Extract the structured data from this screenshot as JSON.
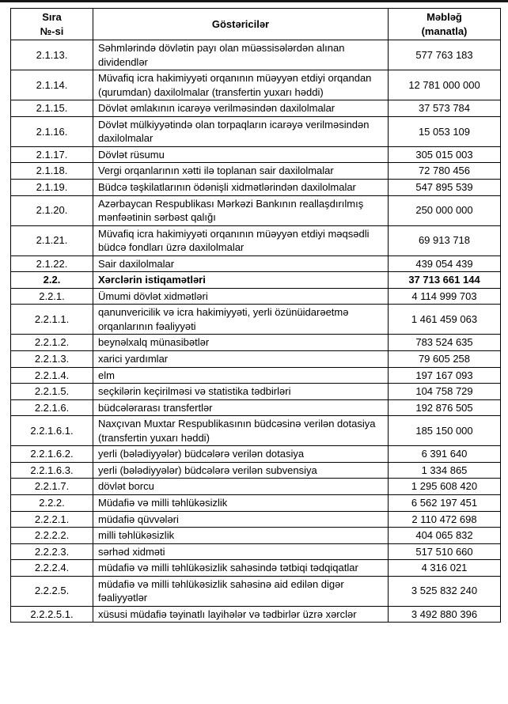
{
  "table": {
    "headers": {
      "row_number": "Sıra\n№-si",
      "indicators": "Göstəricilər",
      "amount": "Məbləğ\n(manatla)"
    },
    "rows": [
      {
        "no": "2.1.13.",
        "label": "Səhmlərində dövlətin payı olan müəssisələrdən alınan dividendlər",
        "amount": "577 763 183"
      },
      {
        "no": "2.1.14.",
        "label": "Müvafiq icra hakimiyyəti orqanının müəyyən etdiyi orqandan (qurumdan) daxilolmalar (transfertin yuxarı həddi)",
        "amount": "12 781 000 000"
      },
      {
        "no": "2.1.15.",
        "label": "Dövlət əmlakının icarəyə verilməsindən daxilolmalar",
        "amount": "37 573 784"
      },
      {
        "no": "2.1.16.",
        "label": "Dövlət mülkiyyətində olan torpaqların icarəyə verilməsindən daxilolmalar",
        "amount": "15 053 109"
      },
      {
        "no": "2.1.17.",
        "label": "Dövlət rüsumu",
        "amount": "305 015 003"
      },
      {
        "no": "2.1.18.",
        "label": "Vergi orqanlarının xətti ilə toplanan sair daxilolmalar",
        "amount": "72 780 456"
      },
      {
        "no": "2.1.19.",
        "label": "Büdcə təşkilatlarının ödənişli xidmətlərindən daxilolmalar",
        "amount": "547 895 539"
      },
      {
        "no": "2.1.20.",
        "label": "Azərbaycan Respublikası Mərkəzi Bankının reallaşdırılmış mənfəətinin sərbəst qalığı",
        "amount": "250 000 000"
      },
      {
        "no": "2.1.21.",
        "label": "Müvafiq icra hakimiyyəti orqanının müəyyən etdiyi məqsədli büdcə fondları üzrə daxilolmalar",
        "amount": "69 913 718"
      },
      {
        "no": "2.1.22.",
        "label": "Sair daxilolmalar",
        "amount": "439 054 439"
      },
      {
        "no": "2.2.",
        "label": "Xərclərin istiqamətləri",
        "amount": "37 713 661 144",
        "bold": true
      },
      {
        "no": "2.2.1.",
        "label": "Ümumi dövlət xidmətləri",
        "amount": "4 114 999 703"
      },
      {
        "no": "2.2.1.1.",
        "label": "qanunvericilik və icra hakimiyyəti, yerli özünüidarəetmə orqanlarının fəaliyyəti",
        "amount": "1 461 459 063"
      },
      {
        "no": "2.2.1.2.",
        "label": "beynəlxalq münasibətlər",
        "amount": "783 524 635"
      },
      {
        "no": "2.2.1.3.",
        "label": "xarici yardımlar",
        "amount": "79 605 258"
      },
      {
        "no": "2.2.1.4.",
        "label": "elm",
        "amount": "197 167 093"
      },
      {
        "no": "2.2.1.5.",
        "label": "seçkilərin keçirilməsi və statistika tədbirləri",
        "amount": "104 758 729"
      },
      {
        "no": "2.2.1.6.",
        "label": "büdcələrarası transfertlər",
        "amount": "192 876 505"
      },
      {
        "no": "2.2.1.6.1.",
        "label": "Naxçıvan Muxtar Respublikasının büdcəsinə verilən dotasiya (transfertin yuxarı həddi)",
        "amount": "185 150 000"
      },
      {
        "no": "2.2.1.6.2.",
        "label": "yerli (bələdiyyələr) büdcələrə verilən dotasiya",
        "amount": "6 391 640"
      },
      {
        "no": "2.2.1.6.3.",
        "label": "yerli (bələdiyyələr) büdcələrə verilən subvensiya",
        "amount": "1 334 865"
      },
      {
        "no": "2.2.1.7.",
        "label": "dövlət borcu",
        "amount": "1 295 608 420"
      },
      {
        "no": "2.2.2.",
        "label": "Müdafiə və milli təhlükəsizlik",
        "amount": "6 562 197 451"
      },
      {
        "no": "2.2.2.1.",
        "label": "müdafiə qüvvələri",
        "amount": "2 110 472 698"
      },
      {
        "no": "2.2.2.2.",
        "label": "milli təhlükəsizlik",
        "amount": "404 065 832"
      },
      {
        "no": "2.2.2.3.",
        "label": "sərhəd xidməti",
        "amount": "517 510 660"
      },
      {
        "no": "2.2.2.4.",
        "label": "müdafiə və milli təhlükəsizlik sahəsində tətbiqi tədqiqatlar",
        "amount": "4 316 021"
      },
      {
        "no": "2.2.2.5.",
        "label": "müdafiə və milli təhlükəsizlik sahəsinə aid edilən digər fəaliyyətlər",
        "amount": "3 525 832 240"
      },
      {
        "no": "2.2.2.5.1.",
        "label": "xüsusi müdafiə təyinatlı layihələr və tədbirlər üzrə xərclər",
        "amount": "3 492 880 396"
      }
    ],
    "colors": {
      "border": "#000000",
      "text": "#000000",
      "background": "#ffffff"
    }
  }
}
